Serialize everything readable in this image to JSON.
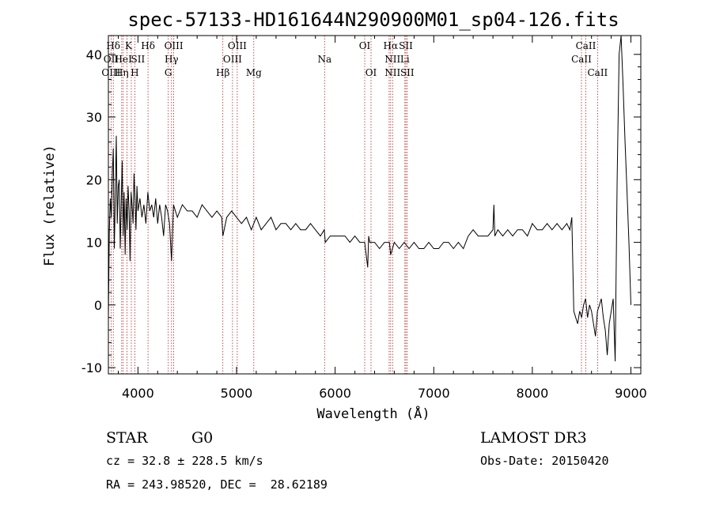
{
  "chart_data": {
    "type": "line",
    "title": "spec-57133-HD161644N290900M01_sp04-126.fits",
    "xlabel": "Wavelength (Å)",
    "ylabel": "Flux (relative)",
    "xlim": [
      3700,
      9100
    ],
    "ylim": [
      -11,
      43
    ],
    "x_ticks": [
      4000,
      5000,
      6000,
      7000,
      8000,
      9000
    ],
    "y_ticks": [
      -10,
      0,
      10,
      20,
      30,
      40
    ],
    "series": [
      {
        "name": "flux",
        "x": [
          3700,
          3710,
          3720,
          3730,
          3740,
          3750,
          3760,
          3770,
          3780,
          3790,
          3800,
          3810,
          3820,
          3830,
          3840,
          3850,
          3860,
          3870,
          3880,
          3890,
          3900,
          3910,
          3920,
          3930,
          3940,
          3950,
          3960,
          3970,
          3980,
          3990,
          4000,
          4020,
          4040,
          4060,
          4080,
          4100,
          4120,
          4140,
          4160,
          4180,
          4200,
          4220,
          4240,
          4260,
          4280,
          4300,
          4320,
          4340,
          4360,
          4380,
          4400,
          4450,
          4500,
          4550,
          4600,
          4650,
          4700,
          4750,
          4800,
          4850,
          4861,
          4900,
          4950,
          5000,
          5050,
          5100,
          5150,
          5200,
          5250,
          5300,
          5350,
          5400,
          5450,
          5500,
          5550,
          5600,
          5650,
          5700,
          5750,
          5800,
          5850,
          5890,
          5900,
          5950,
          6000,
          6050,
          6100,
          6150,
          6200,
          6250,
          6300,
          6330,
          6340,
          6350,
          6400,
          6450,
          6500,
          6550,
          6563,
          6600,
          6650,
          6700,
          6750,
          6800,
          6850,
          6900,
          6950,
          7000,
          7050,
          7100,
          7150,
          7200,
          7250,
          7300,
          7350,
          7400,
          7450,
          7500,
          7550,
          7600,
          7610,
          7620,
          7650,
          7700,
          7750,
          7800,
          7850,
          7900,
          7950,
          8000,
          8050,
          8100,
          8150,
          8200,
          8250,
          8300,
          8350,
          8380,
          8400,
          8420,
          8440,
          8460,
          8480,
          8500,
          8520,
          8540,
          8560,
          8580,
          8600,
          8620,
          8640,
          8660,
          8680,
          8700,
          8720,
          8740,
          8760,
          8780,
          8800,
          8820,
          8840,
          8860,
          8880,
          8900,
          8920,
          8940,
          8960,
          8980,
          9000
        ],
        "y": [
          -2,
          12,
          17,
          14,
          21,
          25,
          9,
          17,
          27,
          13,
          19,
          20,
          9,
          16,
          23,
          11,
          18,
          8,
          17,
          12,
          19,
          15,
          7,
          18,
          16,
          13,
          21,
          17,
          12,
          19,
          15,
          17,
          14,
          16,
          13,
          18,
          15,
          16,
          14,
          17,
          13,
          16,
          14,
          11,
          16,
          15,
          13,
          7,
          16,
          15,
          14,
          16,
          15,
          15,
          14,
          16,
          15,
          14,
          15,
          14,
          11,
          14,
          15,
          14,
          13,
          14,
          12,
          14,
          12,
          13,
          14,
          12,
          13,
          13,
          12,
          13,
          12,
          12,
          13,
          12,
          11,
          12,
          10,
          11,
          11,
          11,
          11,
          10,
          11,
          10,
          10,
          6,
          11,
          10,
          10,
          9,
          10,
          10,
          8,
          10,
          9,
          10,
          9,
          10,
          9,
          9,
          10,
          9,
          9,
          10,
          10,
          9,
          10,
          9,
          11,
          12,
          11,
          11,
          11,
          12,
          16,
          11,
          12,
          11,
          12,
          11,
          12,
          12,
          11,
          13,
          12,
          12,
          13,
          12,
          13,
          12,
          13,
          12,
          14,
          -1,
          -2,
          -3,
          -1,
          -2,
          0,
          1,
          -2,
          0,
          -1,
          -3,
          -5,
          -1,
          0,
          1,
          -2,
          -4,
          -8,
          -3,
          -1,
          1,
          -9,
          20,
          40,
          43,
          35,
          26,
          18,
          10,
          0
        ]
      }
    ],
    "line_labels": [
      {
        "text": "Hδ",
        "wl": 3750,
        "row": 1
      },
      {
        "text": "K",
        "wl": 3905,
        "row": 1
      },
      {
        "text": "Hδ",
        "wl": 4102,
        "row": 1
      },
      {
        "text": "OIII",
        "wl": 4363,
        "row": 1
      },
      {
        "text": "OIII",
        "wl": 5007,
        "row": 1
      },
      {
        "text": "OI",
        "wl": 6300,
        "row": 1
      },
      {
        "text": "Hα",
        "wl": 6563,
        "row": 1
      },
      {
        "text": "SII",
        "wl": 6717,
        "row": 1
      },
      {
        "text": "CaII",
        "wl": 8542,
        "row": 1
      },
      {
        "text": "OII",
        "wl": 3727,
        "row": 2
      },
      {
        "text": "HeI",
        "wl": 3850,
        "row": 2
      },
      {
        "text": "SII",
        "wl": 4000,
        "row": 2
      },
      {
        "text": "Hγ",
        "wl": 4340,
        "row": 2
      },
      {
        "text": "OIII",
        "wl": 4959,
        "row": 2
      },
      {
        "text": "Na",
        "wl": 5893,
        "row": 2
      },
      {
        "text": "NII",
        "wl": 6583,
        "row": 2
      },
      {
        "text": "Li",
        "wl": 6707,
        "row": 2
      },
      {
        "text": "CaII",
        "wl": 8498,
        "row": 2
      },
      {
        "text": "OIII",
        "wl": 3727,
        "row": 3
      },
      {
        "text": "Hη",
        "wl": 3835,
        "row": 3
      },
      {
        "text": "H",
        "wl": 3968,
        "row": 3
      },
      {
        "text": "G",
        "wl": 4307,
        "row": 3
      },
      {
        "text": "Hβ",
        "wl": 4861,
        "row": 3
      },
      {
        "text": "Mg",
        "wl": 5175,
        "row": 3
      },
      {
        "text": "OI",
        "wl": 6364,
        "row": 3
      },
      {
        "text": "NII",
        "wl": 6583,
        "row": 3
      },
      {
        "text": "SII",
        "wl": 6731,
        "row": 3
      },
      {
        "text": "CaII",
        "wl": 8662,
        "row": 3
      }
    ],
    "reference_lines": [
      3727,
      3750,
      3835,
      3850,
      3889,
      3933,
      3968,
      4102,
      4307,
      4340,
      4363,
      4861,
      4959,
      5007,
      5175,
      5893,
      6300,
      6364,
      6548,
      6563,
      6583,
      6707,
      6717,
      6731,
      8498,
      8542,
      8662
    ],
    "colors": {
      "spectrum": "#000000",
      "reference_line": "#b22222",
      "axes": "#000000"
    }
  },
  "info": {
    "object_class": "STAR",
    "subclass": "G0",
    "survey": "LAMOST DR3",
    "cz": "cz = 32.8 ± 228.5 km/s",
    "obs_date": "Obs-Date: 20150420",
    "coords": "RA = 243.98520, DEC =  28.62189"
  }
}
